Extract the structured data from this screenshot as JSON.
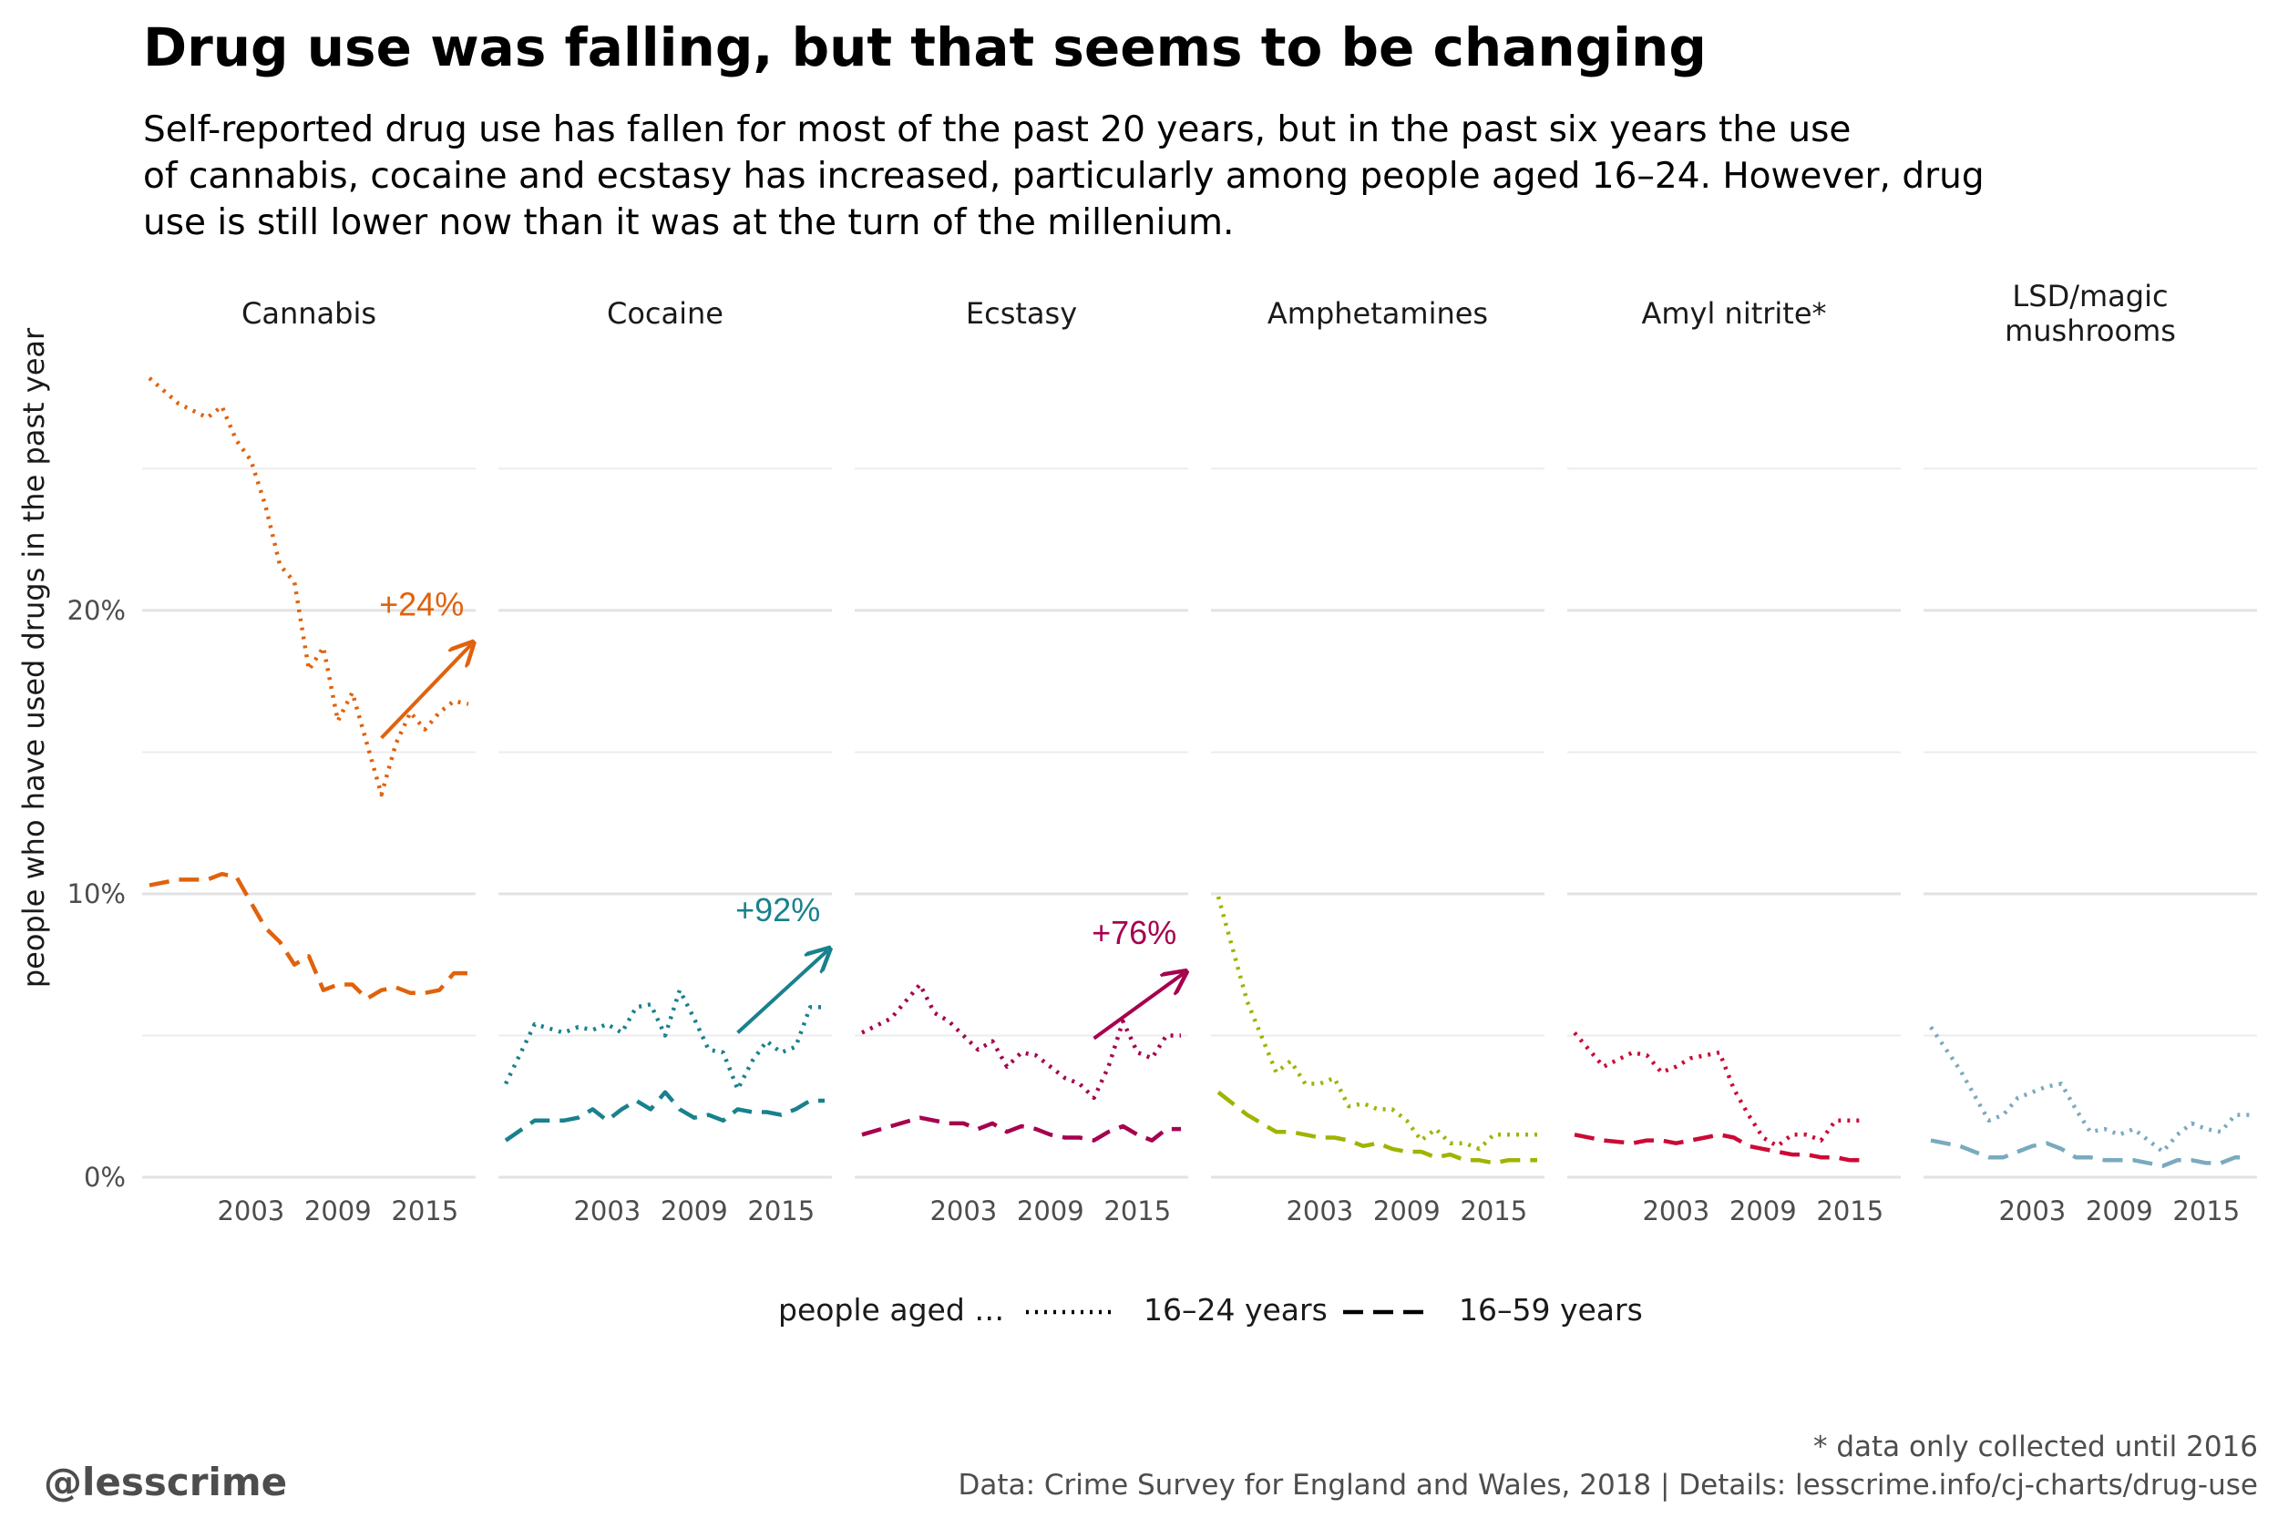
{
  "title": "Drug use was falling, but that seems to be changing",
  "subtitle_lines": [
    "Self-reported drug use has fallen for most of the past 20 years, but in the past six years the use",
    "of cannabis, cocaine and ecstasy has increased, particularly among people aged 16–24. However, drug",
    "use is still lower now than it was at the turn of the millenium."
  ],
  "chart_data": {
    "type": "line",
    "ylabel": "people who have used drugs in the past year",
    "ylim": [
      0,
      29
    ],
    "y_ticks": [
      0,
      10,
      20
    ],
    "y_tick_labels": [
      "0%",
      "10%",
      "20%"
    ],
    "y_grid": [
      0,
      5,
      10,
      15,
      20,
      25
    ],
    "x_ticks": [
      2003,
      2009,
      2015
    ],
    "x_tick_labels": [
      "2003",
      "2009",
      "2015"
    ],
    "xlim": [
      1995.5,
      2018.5
    ],
    "grid": true,
    "legend": {
      "title": "people aged …",
      "placement": "bottom",
      "entries": [
        "16–24 years",
        "16–59 years"
      ]
    },
    "panels": [
      {
        "name": "Cannabis",
        "color": "#e0620d",
        "annotation": "+24%",
        "arrow": {
          "from": [
            2012,
            15.5
          ],
          "to": [
            2018.2,
            18.8
          ]
        },
        "series": [
          {
            "name": "16–24 years",
            "x": [
              1996,
              1998,
              2000,
              2001,
              2002,
              2003,
              2004,
              2005,
              2006,
              2007,
              2008,
              2009,
              2010,
              2011,
              2012,
              2013,
              2014,
              2015,
              2016,
              2017,
              2018
            ],
            "y": [
              28.2,
              27.3,
              26.8,
              27.2,
              26.0,
              25.3,
              23.7,
              21.6,
              21.0,
              17.9,
              18.7,
              16.1,
              17.1,
              15.3,
              13.5,
              15.3,
              16.4,
              15.8,
              16.4,
              16.8,
              16.7
            ]
          },
          {
            "name": "16–59 years",
            "x": [
              1996,
              1998,
              2000,
              2001,
              2002,
              2003,
              2004,
              2005,
              2006,
              2007,
              2008,
              2009,
              2010,
              2011,
              2012,
              2013,
              2014,
              2015,
              2016,
              2017,
              2018
            ],
            "y": [
              10.3,
              10.5,
              10.5,
              10.7,
              10.6,
              9.7,
              8.8,
              8.3,
              7.5,
              7.8,
              6.6,
              6.8,
              6.8,
              6.3,
              6.6,
              6.7,
              6.5,
              6.5,
              6.6,
              7.2,
              7.2
            ]
          }
        ]
      },
      {
        "name": "Cocaine",
        "color": "#19818e",
        "annotation": "+92%",
        "arrow": {
          "from": [
            2012,
            5.1
          ],
          "to": [
            2018.2,
            8.0
          ]
        },
        "series": [
          {
            "name": "16–24 years",
            "x": [
              1996,
              1998,
              2000,
              2001,
              2002,
              2003,
              2004,
              2005,
              2006,
              2007,
              2008,
              2009,
              2010,
              2011,
              2012,
              2013,
              2014,
              2015,
              2016,
              2017,
              2018
            ],
            "y": [
              3.3,
              5.4,
              5.1,
              5.3,
              5.2,
              5.4,
              5.1,
              6.0,
              6.1,
              5.0,
              6.6,
              5.6,
              4.5,
              4.4,
              3.1,
              4.1,
              4.8,
              4.4,
              4.6,
              6.0,
              6.0
            ]
          },
          {
            "name": "16–59 years",
            "x": [
              1996,
              1998,
              2000,
              2001,
              2002,
              2003,
              2004,
              2005,
              2006,
              2007,
              2008,
              2009,
              2010,
              2011,
              2012,
              2013,
              2014,
              2015,
              2016,
              2017,
              2018
            ],
            "y": [
              1.3,
              2.0,
              2.0,
              2.1,
              2.4,
              2.0,
              2.4,
              2.7,
              2.4,
              3.0,
              2.4,
              2.1,
              2.2,
              2.0,
              2.4,
              2.3,
              2.3,
              2.2,
              2.4,
              2.7,
              2.7
            ]
          }
        ]
      },
      {
        "name": "Ecstasy",
        "color": "#a6004f",
        "annotation": "+76%",
        "arrow": {
          "from": [
            2012,
            4.9
          ],
          "to": [
            2018.2,
            7.2
          ]
        },
        "series": [
          {
            "name": "16–24 years",
            "x": [
              1996,
              1998,
              2000,
              2001,
              2002,
              2003,
              2004,
              2005,
              2006,
              2007,
              2008,
              2009,
              2010,
              2011,
              2012,
              2013,
              2014,
              2015,
              2016,
              2017,
              2018
            ],
            "y": [
              5.1,
              5.6,
              6.8,
              5.8,
              5.5,
              5.0,
              4.5,
              4.8,
              3.9,
              4.4,
              4.3,
              3.9,
              3.5,
              3.3,
              2.8,
              3.9,
              5.5,
              4.4,
              4.2,
              5.0,
              5.0
            ]
          },
          {
            "name": "16–59 years",
            "x": [
              1996,
              1998,
              2000,
              2001,
              2002,
              2003,
              2004,
              2005,
              2006,
              2007,
              2008,
              2009,
              2010,
              2011,
              2012,
              2013,
              2014,
              2015,
              2016,
              2017,
              2018
            ],
            "y": [
              1.5,
              1.8,
              2.1,
              2.0,
              1.9,
              1.9,
              1.7,
              1.9,
              1.6,
              1.8,
              1.7,
              1.5,
              1.4,
              1.4,
              1.3,
              1.6,
              1.8,
              1.5,
              1.3,
              1.7,
              1.7
            ]
          }
        ]
      },
      {
        "name": "Amphetamines",
        "color": "#a0b300",
        "annotation": "",
        "series": [
          {
            "name": "16–24 years",
            "x": [
              1996,
              1998,
              2000,
              2001,
              2002,
              2003,
              2004,
              2005,
              2006,
              2007,
              2008,
              2009,
              2010,
              2011,
              2012,
              2013,
              2014,
              2015,
              2016,
              2017,
              2018
            ],
            "y": [
              9.9,
              6.2,
              3.7,
              4.1,
              3.3,
              3.3,
              3.5,
              2.5,
              2.6,
              2.4,
              2.4,
              2.0,
              1.3,
              1.7,
              1.2,
              1.2,
              1.0,
              1.5,
              1.5,
              1.5,
              1.5
            ]
          },
          {
            "name": "16–59 years",
            "x": [
              1996,
              1998,
              2000,
              2001,
              2002,
              2003,
              2004,
              2005,
              2006,
              2007,
              2008,
              2009,
              2010,
              2011,
              2012,
              2013,
              2014,
              2015,
              2016,
              2017,
              2018
            ],
            "y": [
              3.0,
              2.2,
              1.6,
              1.6,
              1.5,
              1.4,
              1.4,
              1.3,
              1.1,
              1.2,
              1.0,
              0.9,
              0.9,
              0.7,
              0.8,
              0.6,
              0.6,
              0.5,
              0.6,
              0.6,
              0.6
            ]
          }
        ]
      },
      {
        "name": "Amyl nitrite*",
        "color": "#cc0a36",
        "annotation": "",
        "series": [
          {
            "name": "16–24 years",
            "x": [
              1996,
              1998,
              2000,
              2001,
              2002,
              2003,
              2004,
              2005,
              2006,
              2007,
              2008,
              2009,
              2010,
              2011,
              2012,
              2013,
              2014,
              2015,
              2016
            ],
            "y": [
              5.1,
              3.9,
              4.4,
              4.3,
              3.7,
              3.9,
              4.2,
              4.3,
              4.4,
              3.1,
              2.2,
              1.4,
              1.1,
              1.5,
              1.5,
              1.3,
              2.0,
              2.0,
              2.0
            ]
          },
          {
            "name": "16–59 years",
            "x": [
              1996,
              1998,
              2000,
              2001,
              2002,
              2003,
              2004,
              2005,
              2006,
              2007,
              2008,
              2009,
              2010,
              2011,
              2012,
              2013,
              2014,
              2015,
              2016
            ],
            "y": [
              1.5,
              1.3,
              1.2,
              1.3,
              1.3,
              1.2,
              1.3,
              1.4,
              1.5,
              1.4,
              1.1,
              1.0,
              0.9,
              0.8,
              0.8,
              0.7,
              0.7,
              0.6,
              0.6
            ]
          }
        ]
      },
      {
        "name": "LSD/magic mushrooms",
        "name_lines": [
          "LSD/magic",
          "mushrooms"
        ],
        "color": "#7aaabf",
        "annotation": "",
        "series": [
          {
            "name": "16–24 years",
            "x": [
              1996,
              1998,
              2000,
              2001,
              2002,
              2003,
              2004,
              2005,
              2006,
              2007,
              2008,
              2009,
              2010,
              2011,
              2012,
              2013,
              2014,
              2015,
              2016,
              2017,
              2018
            ],
            "y": [
              5.3,
              3.8,
              2.0,
              2.2,
              2.8,
              3.0,
              3.2,
              3.3,
              2.4,
              1.6,
              1.7,
              1.5,
              1.7,
              1.3,
              0.9,
              1.5,
              1.9,
              1.7,
              1.6,
              2.2,
              2.2
            ]
          },
          {
            "name": "16–59 years",
            "x": [
              1996,
              1998,
              2000,
              2001,
              2002,
              2003,
              2004,
              2005,
              2006,
              2007,
              2008,
              2009,
              2010,
              2011,
              2012,
              2013,
              2014,
              2015,
              2016,
              2017,
              2018
            ],
            "y": [
              1.3,
              1.1,
              0.7,
              0.7,
              0.9,
              1.1,
              1.2,
              1.0,
              0.7,
              0.7,
              0.6,
              0.6,
              0.6,
              0.5,
              0.4,
              0.6,
              0.6,
              0.5,
              0.5,
              0.7,
              0.7
            ]
          }
        ]
      }
    ]
  },
  "caption": {
    "note": "* data only collected until 2016",
    "source": "Data: Crime Survey for England and Wales, 2018 |  Details: lesscrime.info/cj-charts/drug-use",
    "handle": "@lesscrime"
  }
}
